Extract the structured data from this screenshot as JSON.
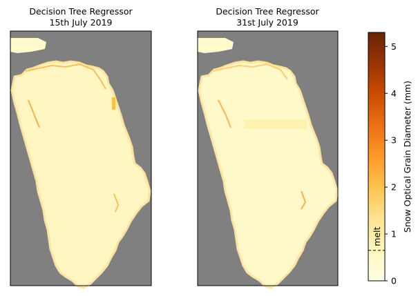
{
  "figure": {
    "panels": [
      {
        "title_line1": "Decision Tree Regressor",
        "title_line2": "15th July 2019"
      },
      {
        "title_line1": "Decision Tree Regressor",
        "title_line2": "31st July 2019"
      }
    ],
    "nodata_color": "#808080"
  },
  "chart_data": {
    "type": "heatmap",
    "panels": [
      {
        "title": "Decision Tree Regressor\n15th July 2019",
        "no_data_color": "#808080"
      },
      {
        "title": "Decision Tree Regressor\n31st July 2019",
        "no_data_color": "#808080"
      }
    ],
    "colorbar": {
      "label": "Snow Optical Grain Diameter (mm)",
      "range": [
        0,
        5.3
      ],
      "ticks": [
        0,
        1,
        2,
        3,
        4,
        5
      ],
      "tick_labels": [
        "0",
        "1",
        "2",
        "3",
        "4",
        "5"
      ],
      "colormap": "YlOrBr",
      "colors": [
        "#ffffe5",
        "#fff7bc",
        "#fee391",
        "#fec44f",
        "#fe9929",
        "#ec7014",
        "#cc4c02",
        "#993404",
        "#662506"
      ],
      "threshold": {
        "value": 0.65,
        "label": "melt",
        "style": "dashed"
      }
    }
  }
}
